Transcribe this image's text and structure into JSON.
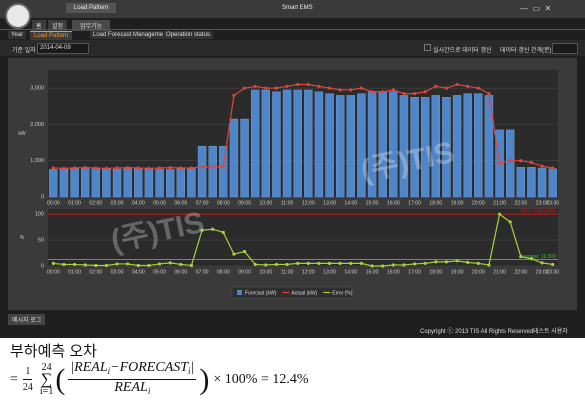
{
  "window": {
    "tab": "Load Pattern",
    "title": "Smart EMS"
  },
  "ribbon_tabs": [
    "홈",
    "설정",
    "업무기능"
  ],
  "doc_tabs": [
    "Year",
    "Load Pattern",
    "Load Forecast Management",
    "Operation status"
  ],
  "controls": {
    "date_label": "기준 일자",
    "date": "2014-04-09",
    "realtime": "실시간으로 데이터 갱신",
    "interval": "데이터 갱신 간격(분)"
  },
  "watermark": "(주)TIS",
  "chart_data": [
    {
      "type": "bar",
      "y_label": "kW",
      "categories": [
        "00:00",
        null,
        "01:00",
        null,
        "02:00",
        null,
        "03:00",
        null,
        "04:00",
        null,
        "05:00",
        null,
        "06:00",
        null,
        "07:00",
        null,
        "08:00",
        null,
        "09:00",
        null,
        "10:00",
        null,
        "11:00",
        null,
        "12:00",
        null,
        "13:00",
        null,
        "14:00",
        null,
        "15:00",
        null,
        "16:00",
        null,
        "17:00",
        null,
        "18:00",
        null,
        "19:00",
        null,
        "20:00",
        null,
        "21:00",
        null,
        "22:00",
        null,
        "23:00",
        "23:30"
      ],
      "series": [
        {
          "name": "Forecast (kW)",
          "type": "bar",
          "color": "#4f86c9",
          "values": [
            760,
            770,
            780,
            790,
            790,
            780,
            770,
            780,
            790,
            780,
            770,
            760,
            780,
            790,
            1400,
            1400,
            1400,
            2150,
            2150,
            2950,
            2950,
            2900,
            2950,
            2950,
            2950,
            2900,
            2850,
            2800,
            2800,
            2850,
            2900,
            2900,
            2900,
            2800,
            2750,
            2750,
            2800,
            2750,
            2800,
            2850,
            2850,
            2800,
            1850,
            1850,
            820,
            820,
            800,
            780
          ]
        },
        {
          "name": "Actual (kW)",
          "type": "line",
          "color": "#e0453c",
          "values": [
            800,
            790,
            800,
            810,
            800,
            790,
            800,
            810,
            800,
            790,
            800,
            810,
            800,
            800,
            830,
            820,
            850,
            2800,
            3000,
            3050,
            3000,
            3000,
            3050,
            3100,
            3100,
            3050,
            3000,
            2950,
            2950,
            3000,
            2900,
            2900,
            2950,
            2850,
            2850,
            2900,
            3050,
            3000,
            3100,
            3050,
            3000,
            2850,
            925,
            1000,
            1000,
            950,
            850,
            800
          ]
        }
      ],
      "ylim": [
        0,
        3500
      ],
      "yticks": [
        0,
        {
          "value": 1000,
          "label": "1,000"
        },
        {
          "value": 2000,
          "label": "2,000"
        },
        {
          "value": 3000,
          "label": "3,000"
        }
      ],
      "grid": true
    },
    {
      "type": "line",
      "y_label": "%",
      "categories": [
        "00:00",
        null,
        "01:00",
        null,
        "02:00",
        null,
        "03:00",
        null,
        "04:00",
        null,
        "05:00",
        null,
        "06:00",
        null,
        "07:00",
        null,
        "08:00",
        null,
        "09:00",
        null,
        "10:00",
        null,
        "11:00",
        null,
        "12:00",
        null,
        "13:00",
        null,
        "14:00",
        null,
        "15:00",
        null,
        "16:00",
        null,
        "17:00",
        null,
        "18:00",
        null,
        "19:00",
        null,
        "20:00",
        null,
        "21:00",
        null,
        "22:00",
        null,
        "23:00",
        "23:30"
      ],
      "series": [
        {
          "name": "Error (%)",
          "type": "line",
          "color": "#a8d23a",
          "values": [
            5,
            3,
            3,
            2,
            1,
            1,
            4,
            4,
            1,
            1,
            4,
            6,
            3,
            1,
            69,
            71,
            65,
            23,
            28,
            3,
            2,
            3,
            3,
            5,
            5,
            5,
            5,
            5,
            5,
            5,
            0,
            0,
            2,
            2,
            4,
            5,
            8,
            8,
            10,
            7,
            5,
            2,
            100,
            85,
            18,
            14,
            6,
            3
          ]
        }
      ],
      "ylim": [
        0,
        110
      ],
      "yticks": [
        0,
        50,
        100
      ],
      "grid": true,
      "reference_lines": [
        {
          "value": 100,
          "label": "Max: 100.000%",
          "color": "#d01818"
        },
        {
          "value": 12.393,
          "label": "Average: 12.393",
          "color": "#3cc23c"
        }
      ]
    }
  ],
  "status": {
    "log_tab": "메시지 로그",
    "copyright": "Copyright ⓒ 2013 TIS All Rights Reserved.",
    "user": "테스트 사용자"
  },
  "formula": {
    "title": "부하예측 오차",
    "equals": "=",
    "coef_num": "1",
    "coef_den": "24",
    "sum": "∑",
    "sum_lower": "i=1",
    "sum_upper": "24",
    "open": "(",
    "num_parts": [
      "|REAL",
      "i",
      "−FORECAST",
      "i",
      "|"
    ],
    "den_parts": [
      "REAL",
      "i"
    ],
    "close": ")",
    "tail": "× 100% = 12.4%"
  }
}
